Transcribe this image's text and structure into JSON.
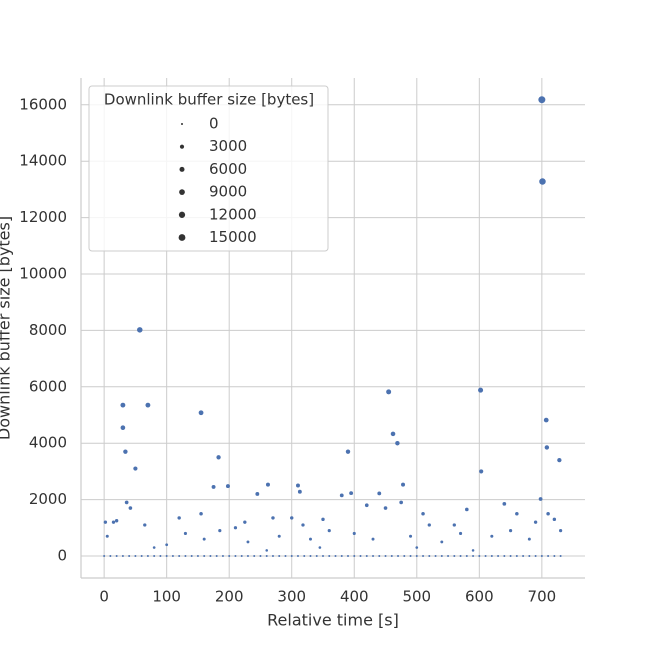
{
  "chart_data": {
    "type": "scatter",
    "x_label": "Relative time [s]",
    "y_label": "Downlink buffer size [bytes]",
    "color": "#4c72b0",
    "grid": true,
    "xlim": [
      -37,
      769
    ],
    "xticks": [
      0,
      100,
      200,
      300,
      400,
      500,
      600,
      700
    ],
    "ylim": [
      -780,
      16950
    ],
    "yticks": [
      0,
      2000,
      4000,
      6000,
      8000,
      10000,
      12000,
      14000,
      16000
    ],
    "legend": {
      "title": "Downlink buffer size [bytes]",
      "sizes": [
        0,
        3000,
        6000,
        9000,
        12000,
        15000
      ],
      "position": "upper left"
    },
    "x": [
      0,
      10,
      20,
      30,
      40,
      50,
      60,
      70,
      80,
      90,
      100,
      110,
      120,
      130,
      140,
      150,
      160,
      170,
      180,
      190,
      200,
      210,
      220,
      230,
      240,
      250,
      260,
      270,
      280,
      290,
      300,
      310,
      320,
      330,
      340,
      350,
      360,
      370,
      380,
      390,
      400,
      410,
      420,
      430,
      440,
      450,
      460,
      470,
      480,
      490,
      500,
      510,
      520,
      530,
      540,
      550,
      560,
      570,
      580,
      590,
      600,
      610,
      620,
      630,
      640,
      650,
      660,
      670,
      680,
      690,
      700,
      710,
      720,
      730,
      30,
      30,
      34,
      50,
      57,
      70,
      155,
      183,
      175,
      198,
      262,
      245,
      310,
      313,
      380,
      390,
      395,
      440,
      455,
      462,
      469,
      478,
      602,
      603,
      700,
      701,
      707,
      708,
      728,
      698,
      2,
      15,
      20,
      36,
      42,
      65,
      120,
      155,
      210,
      225,
      270,
      300,
      318,
      350,
      420,
      450,
      475,
      510,
      520,
      560,
      580,
      640,
      660,
      710,
      720,
      100,
      130,
      160,
      185,
      230,
      280,
      330,
      360,
      400,
      430,
      490,
      540,
      570,
      620,
      650,
      680,
      690,
      5,
      80,
      260,
      345,
      500,
      590,
      730
    ],
    "values": [
      0,
      0,
      0,
      0,
      0,
      0,
      0,
      0,
      0,
      0,
      0,
      0,
      0,
      0,
      0,
      0,
      0,
      0,
      0,
      0,
      0,
      0,
      0,
      0,
      0,
      0,
      0,
      0,
      0,
      0,
      0,
      0,
      0,
      0,
      0,
      0,
      0,
      0,
      0,
      0,
      0,
      0,
      0,
      0,
      0,
      0,
      0,
      0,
      0,
      0,
      0,
      0,
      0,
      0,
      0,
      0,
      0,
      0,
      0,
      0,
      0,
      0,
      0,
      0,
      0,
      0,
      0,
      0,
      0,
      0,
      0,
      0,
      0,
      0,
      5350,
      4550,
      3700,
      3100,
      8020,
      5350,
      5080,
      3500,
      2450,
      2480,
      2530,
      2200,
      2500,
      2280,
      2150,
      3700,
      2230,
      2220,
      5820,
      4330,
      4000,
      2530,
      5880,
      3000,
      16180,
      13280,
      4820,
      3850,
      3400,
      2020,
      1200,
      1200,
      1250,
      1900,
      1700,
      1100,
      1350,
      1500,
      1000,
      1200,
      1350,
      1350,
      1100,
      1300,
      1800,
      1700,
      1900,
      1500,
      1100,
      1100,
      1650,
      1850,
      1500,
      1500,
      1300,
      400,
      800,
      600,
      900,
      500,
      700,
      600,
      900,
      800,
      600,
      700,
      500,
      800,
      700,
      900,
      600,
      1200,
      700,
      300,
      200,
      300,
      300,
      200,
      900
    ]
  }
}
